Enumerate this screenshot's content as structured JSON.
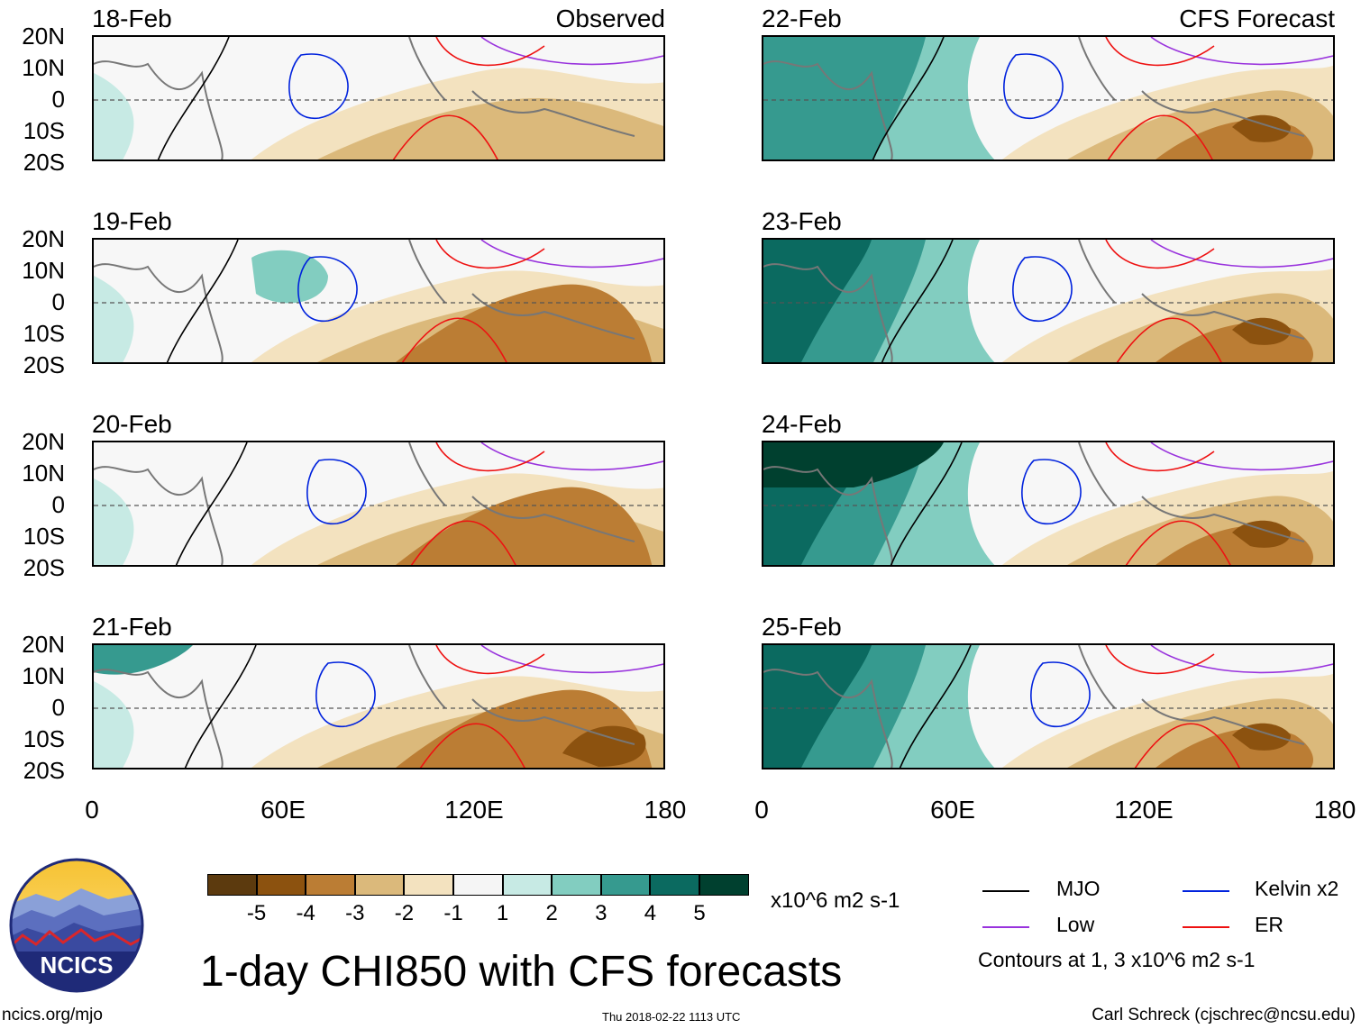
{
  "panels": [
    {
      "date": "18-Feb",
      "tag": "Observed",
      "col": 0,
      "row": 0
    },
    {
      "date": "19-Feb",
      "tag": "",
      "col": 0,
      "row": 1
    },
    {
      "date": "20-Feb",
      "tag": "",
      "col": 0,
      "row": 2
    },
    {
      "date": "21-Feb",
      "tag": "",
      "col": 0,
      "row": 3
    },
    {
      "date": "22-Feb",
      "tag": "CFS Forecast",
      "col": 1,
      "row": 0
    },
    {
      "date": "23-Feb",
      "tag": "",
      "col": 1,
      "row": 1
    },
    {
      "date": "24-Feb",
      "tag": "",
      "col": 1,
      "row": 2
    },
    {
      "date": "25-Feb",
      "tag": "",
      "col": 1,
      "row": 3
    }
  ],
  "lat_labels": [
    "20N",
    "10N",
    "0",
    "10S",
    "20S"
  ],
  "lon_labels": [
    "0",
    "60E",
    "120E",
    "180"
  ],
  "colorbar": {
    "colors": [
      "#5c3a0e",
      "#8c520f",
      "#bb7d34",
      "#dbb97b",
      "#f3e2bf",
      "#f5f5f5",
      "#c7eae4",
      "#82cdc0",
      "#369a8f",
      "#0b6a60",
      "#00402f"
    ],
    "labels": [
      "-5",
      "-4",
      "-3",
      "-2",
      "-1",
      "1",
      "2",
      "3",
      "4",
      "5"
    ],
    "units": "x10^6 m2 s-1"
  },
  "legend": {
    "items": [
      {
        "name": "MJO",
        "color": "#000000"
      },
      {
        "name": "Kelvin x2",
        "color": "#0022dd"
      },
      {
        "name": "Low",
        "color": "#9933dd"
      },
      {
        "name": "ER",
        "color": "#ee1111"
      }
    ],
    "note": "Contours at 1, 3 x10^6 m2 s-1"
  },
  "logo_text": "NCICS",
  "title": "1-day CHI850 with CFS forecasts",
  "footer": {
    "url": "ncics.org/mjo",
    "timestamp": "Thu 2018-02-22 1113 UTC",
    "author": "Carl Schreck (cjschrec@ncsu.edu)"
  }
}
